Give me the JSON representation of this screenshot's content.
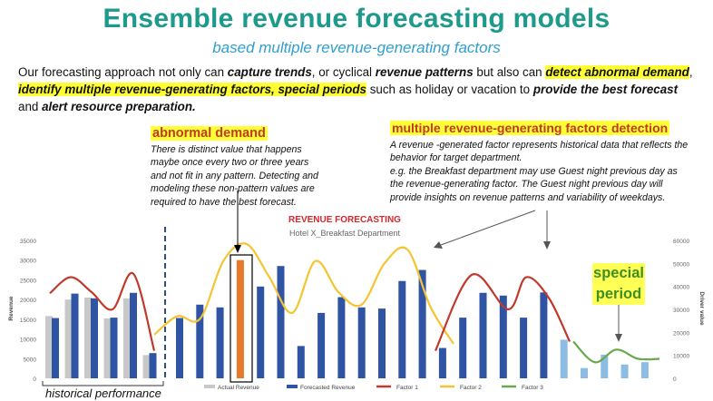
{
  "header": {
    "title": "Ensemble revenue forecasting models",
    "subtitle": "based multiple revenue-generating factors"
  },
  "intro": {
    "p1": "Our forecasting approach not only can ",
    "e1": "capture trends",
    "p2": ", or cyclical ",
    "e2": "revenue patterns",
    "p3": " but also can ",
    "e3": "detect abnormal demand",
    "p4": ", ",
    "e4": "identify multiple revenue-generating factors, special periods",
    "p5": " such as holiday or  vacation to ",
    "e5": "provide the best forecast",
    "p6": " and ",
    "e6": "alert resource preparation."
  },
  "annotations": {
    "abnormal": {
      "heading": "abnormal demand",
      "lines": [
        "There is distinct value that happens",
        "maybe once every two or three years",
        "and not fit in any pattern. Detecting and",
        "modeling these non-pattern values are",
        "required to have the best forecast."
      ]
    },
    "factors": {
      "heading": "multiple revenue-generating factors detection",
      "lines": [
        "A revenue -generated factor represents historical data that reflects the",
        "behavior for target department.",
        "e.g. the Breakfast department may use Guest night previous day as",
        "the revenue-generating  factor. The Guest night previous day will",
        "provide insights on revenue patterns and variability of weekdays."
      ]
    },
    "special": "special period",
    "historical": "historical performance"
  },
  "colors": {
    "actual": "#c8c8c8",
    "forecast": "#2e54a3",
    "abnormal": "#e8782a",
    "special": "#8dbce3",
    "factor1": "#c0392b",
    "factor2": "#f5c430",
    "factor3": "#6aa84f"
  },
  "chart_data": {
    "type": "bar",
    "title": "REVENUE FORECASTING",
    "subtitle": "Hotel X_Breakfast Department",
    "ylabel": "Revenue",
    "y2label": "Driver value",
    "ylim": [
      0,
      35000
    ],
    "y2lim": [
      0,
      60000
    ],
    "yticks": [
      0,
      5000,
      10000,
      15000,
      20000,
      25000,
      30000,
      35000
    ],
    "y2ticks": [
      0,
      10000,
      20000,
      30000,
      40000,
      50000,
      60000
    ],
    "grid": false,
    "legend_position": "bottom",
    "series": [
      {
        "name": "Actual Revenue",
        "values": [
          15800,
          20000,
          20500,
          15200,
          20300,
          5900
        ]
      },
      {
        "name": "Forecasted Revenue",
        "values": [
          15300,
          21500,
          20300,
          15400,
          21700,
          6400,
          15300,
          18700,
          18000,
          30000,
          23300,
          28500,
          8200,
          16600,
          20600,
          18000,
          17700,
          24700,
          27500,
          7700,
          15400,
          21700,
          21000,
          15400,
          21800,
          9800,
          2600,
          6000,
          3500,
          4100
        ]
      },
      {
        "name": "Factor 1",
        "values": [
          37000,
          44000,
          37500,
          30000,
          45500,
          12000
        ]
      },
      {
        "name": "Factor 2",
        "values": [
          19000,
          27000,
          26000,
          51000,
          58500,
          44000,
          28500,
          51000,
          37500,
          32000,
          50000,
          56000,
          31000,
          15000
        ]
      },
      {
        "name": "Factor 3",
        "values": [
          16000,
          7000,
          12500,
          8500,
          8500
        ]
      }
    ],
    "abnormal_index": 9,
    "special_period_indices": [
      25,
      26,
      27,
      28,
      29
    ]
  }
}
